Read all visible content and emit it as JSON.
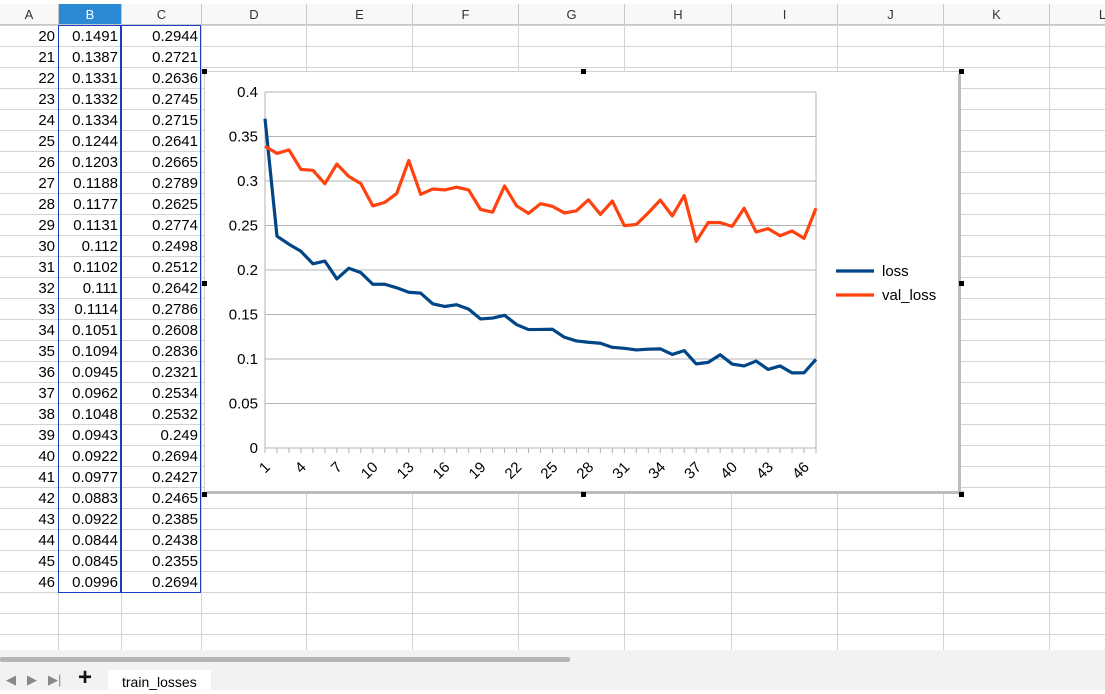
{
  "columns": [
    "A",
    "B",
    "C",
    "D",
    "E",
    "F",
    "G",
    "H",
    "I",
    "J",
    "K",
    "L"
  ],
  "selected_column": "B",
  "rows": [
    {
      "a": "20",
      "b": "0.1491",
      "c": "0.2944"
    },
    {
      "a": "21",
      "b": "0.1387",
      "c": "0.2721"
    },
    {
      "a": "22",
      "b": "0.1331",
      "c": "0.2636"
    },
    {
      "a": "23",
      "b": "0.1332",
      "c": "0.2745"
    },
    {
      "a": "24",
      "b": "0.1334",
      "c": "0.2715"
    },
    {
      "a": "25",
      "b": "0.1244",
      "c": "0.2641"
    },
    {
      "a": "26",
      "b": "0.1203",
      "c": "0.2665"
    },
    {
      "a": "27",
      "b": "0.1188",
      "c": "0.2789"
    },
    {
      "a": "28",
      "b": "0.1177",
      "c": "0.2625"
    },
    {
      "a": "29",
      "b": "0.1131",
      "c": "0.2774"
    },
    {
      "a": "30",
      "b": "0.112",
      "c": "0.2498"
    },
    {
      "a": "31",
      "b": "0.1102",
      "c": "0.2512"
    },
    {
      "a": "32",
      "b": "0.111",
      "c": "0.2642"
    },
    {
      "a": "33",
      "b": "0.1114",
      "c": "0.2786"
    },
    {
      "a": "34",
      "b": "0.1051",
      "c": "0.2608"
    },
    {
      "a": "35",
      "b": "0.1094",
      "c": "0.2836"
    },
    {
      "a": "36",
      "b": "0.0945",
      "c": "0.2321"
    },
    {
      "a": "37",
      "b": "0.0962",
      "c": "0.2534"
    },
    {
      "a": "38",
      "b": "0.1048",
      "c": "0.2532"
    },
    {
      "a": "39",
      "b": "0.0943",
      "c": "0.249"
    },
    {
      "a": "40",
      "b": "0.0922",
      "c": "0.2694"
    },
    {
      "a": "41",
      "b": "0.0977",
      "c": "0.2427"
    },
    {
      "a": "42",
      "b": "0.0883",
      "c": "0.2465"
    },
    {
      "a": "43",
      "b": "0.0922",
      "c": "0.2385"
    },
    {
      "a": "44",
      "b": "0.0844",
      "c": "0.2438"
    },
    {
      "a": "45",
      "b": "0.0845",
      "c": "0.2355"
    },
    {
      "a": "46",
      "b": "0.0996",
      "c": "0.2694"
    }
  ],
  "chart_data": {
    "type": "line",
    "title": "",
    "xlabel": "",
    "ylabel": "",
    "x": [
      1,
      2,
      3,
      4,
      5,
      6,
      7,
      8,
      9,
      10,
      11,
      12,
      13,
      14,
      15,
      16,
      17,
      18,
      19,
      20,
      21,
      22,
      23,
      24,
      25,
      26,
      27,
      28,
      29,
      30,
      31,
      32,
      33,
      34,
      35,
      36,
      37,
      38,
      39,
      40,
      41,
      42,
      43,
      44,
      45,
      46,
      47
    ],
    "x_tick_labels": [
      "1",
      "4",
      "7",
      "10",
      "13",
      "16",
      "19",
      "22",
      "25",
      "28",
      "31",
      "34",
      "37",
      "40",
      "43",
      "46"
    ],
    "y_tick_labels": [
      "0",
      "0.05",
      "0.1",
      "0.15",
      "0.2",
      "0.25",
      "0.3",
      "0.35",
      "0.4"
    ],
    "ylim": [
      0,
      0.4
    ],
    "grid": true,
    "legend_position": "right",
    "series": [
      {
        "name": "loss",
        "color": "#004586",
        "values": [
          0.37,
          0.238,
          0.229,
          0.221,
          0.207,
          0.21,
          0.19,
          0.202,
          0.197,
          0.184,
          0.184,
          0.18,
          0.175,
          0.174,
          0.162,
          0.159,
          0.161,
          0.156,
          0.145,
          0.146,
          0.1491,
          0.1387,
          0.1331,
          0.1332,
          0.1334,
          0.1244,
          0.1203,
          0.1188,
          0.1177,
          0.1131,
          0.112,
          0.1102,
          0.111,
          0.1114,
          0.1051,
          0.1094,
          0.0945,
          0.0962,
          0.1048,
          0.0943,
          0.0922,
          0.0977,
          0.0883,
          0.0922,
          0.0844,
          0.0845,
          0.0996
        ]
      },
      {
        "name": "val_loss",
        "color": "#ff420e",
        "values": [
          0.339,
          0.331,
          0.335,
          0.313,
          0.312,
          0.297,
          0.319,
          0.305,
          0.297,
          0.272,
          0.276,
          0.286,
          0.323,
          0.285,
          0.291,
          0.29,
          0.293,
          0.29,
          0.268,
          0.265,
          0.2944,
          0.2721,
          0.2636,
          0.2745,
          0.2715,
          0.2641,
          0.2665,
          0.2789,
          0.2625,
          0.2774,
          0.2498,
          0.2512,
          0.2642,
          0.2786,
          0.2608,
          0.2836,
          0.2321,
          0.2534,
          0.2532,
          0.249,
          0.2694,
          0.2427,
          0.2465,
          0.2385,
          0.2438,
          0.2355,
          0.2694
        ]
      }
    ]
  },
  "sheet_tabs": {
    "add_label": "+",
    "active_tab": "train_losses"
  }
}
